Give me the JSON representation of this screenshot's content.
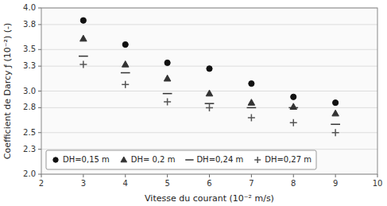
{
  "chart_data": {
    "type": "scatter",
    "x_label": "Vitesse du courant (10⁻² m/s)",
    "y_label": "Coefficient de Darcy ƒ (10⁻²) (-)",
    "series": [
      {
        "name": "DH=0,15 m",
        "color": "#111111",
        "marker": "circle",
        "x": [
          3,
          4,
          5,
          6,
          7,
          8,
          9
        ],
        "values": [
          3.85,
          3.56,
          3.34,
          3.27,
          3.09,
          2.93,
          2.86
        ]
      },
      {
        "name": "DH= 0,2 m",
        "color": "#333333",
        "marker": "triangle",
        "x": [
          3,
          4,
          5,
          6,
          7,
          8,
          9
        ],
        "values": [
          3.63,
          3.32,
          3.15,
          2.97,
          2.86,
          2.81,
          2.73
        ]
      },
      {
        "name": "DH=0,24 m",
        "color": "#333333",
        "marker": "hline",
        "x": [
          3,
          4,
          5,
          6,
          7,
          8,
          9
        ],
        "values": [
          3.42,
          3.22,
          2.97,
          2.85,
          2.8,
          2.8,
          2.6
        ]
      },
      {
        "name": "DH=0,27 m",
        "color": "#555555",
        "marker": "plus",
        "x": [
          3,
          4,
          5,
          6,
          7,
          8,
          9
        ],
        "values": [
          3.32,
          3.08,
          2.87,
          2.8,
          2.68,
          2.62,
          2.5
        ]
      }
    ],
    "xlim": [
      2,
      10
    ],
    "ylim": [
      2.0,
      4.0
    ],
    "xticks": [
      2,
      3,
      4,
      5,
      6,
      7,
      8,
      9,
      10
    ],
    "yticks": [
      {
        "value": 2.0,
        "label": "2.0"
      },
      2.3,
      2.5,
      2.8,
      {
        "value": 3.0,
        "label": "3.0"
      },
      3.3,
      3.5,
      3.8,
      {
        "value": 4.0,
        "label": "4.0"
      }
    ],
    "grid": true,
    "legend": "lower left"
  }
}
